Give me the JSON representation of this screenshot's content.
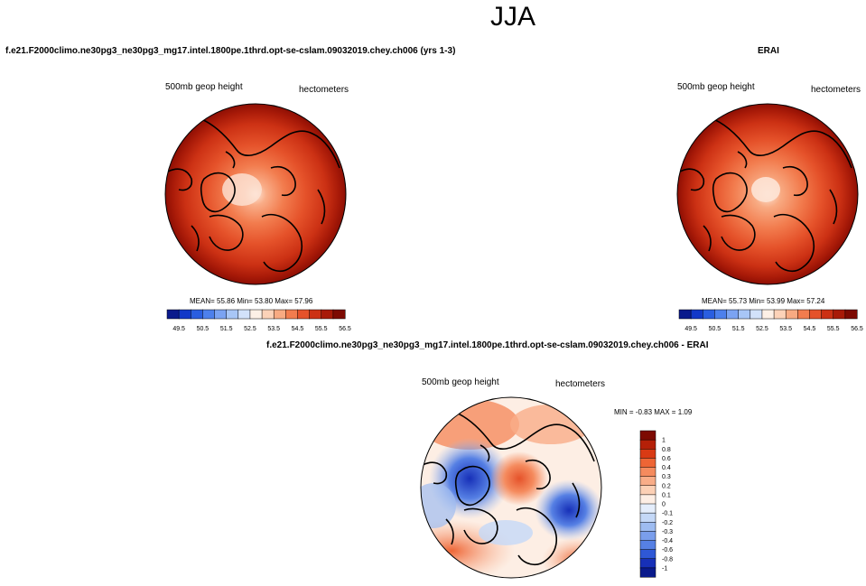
{
  "season": "JJA",
  "panels": [
    {
      "id": "model",
      "case_title": "f.e21.F2000climo.ne30pg3_ne30pg3_mg17.intel.1800pe.1thrd.opt-se-cslam.09032019.chey.ch006 (yrs 1-3)",
      "variable": "500mb geop height",
      "units": "hectometers",
      "stats": "MEAN=  55.86  Min=  53.80  Max=  57.96"
    },
    {
      "id": "obs",
      "case_title": "ERAI",
      "variable": "500mb geop height",
      "units": "hectometers",
      "stats": "MEAN=  55.73  Min=  53.99  Max=  57.24"
    },
    {
      "id": "diff",
      "case_title": "f.e21.F2000climo.ne30pg3_ne30pg3_mg17.intel.1800pe.1thrd.opt-se-cslam.09032019.chey.ch006 - ERAI",
      "variable": "500mb geop height",
      "units": "hectometers",
      "stats": "MIN =  -0.83 MAX =   1.09"
    }
  ],
  "colorbar_fields": {
    "ticks": [
      "49.5",
      "50.5",
      "51.5",
      "52.5",
      "53.5",
      "54.5",
      "55.5",
      "56.5"
    ],
    "colors": [
      "#0a1a8c",
      "#1238c8",
      "#2a5ee0",
      "#4d80ec",
      "#7ba3f2",
      "#a8c6f6",
      "#d2e2fa",
      "#fdf0e6",
      "#fcd2b8",
      "#f8aa82",
      "#f27c4e",
      "#e5522a",
      "#cc3114",
      "#a81a08",
      "#7d0a02"
    ]
  },
  "colorbar_diff": {
    "ticks": [
      "1",
      "0.8",
      "0.6",
      "0.4",
      "0.3",
      "0.2",
      "0.1",
      "0",
      "-0.1",
      "-0.2",
      "-0.3",
      "-0.4",
      "-0.6",
      "-0.8",
      "-1"
    ],
    "colors": [
      "#7d0a02",
      "#b52008",
      "#d93a14",
      "#ee6535",
      "#f58b5e",
      "#f9ad88",
      "#fcd0b5",
      "#fdeee4",
      "#e4edfb",
      "#c4d8f7",
      "#9ebcf1",
      "#7a9eec",
      "#5680e4",
      "#2f58d6",
      "#1730b8",
      "#0a1a8c"
    ]
  }
}
